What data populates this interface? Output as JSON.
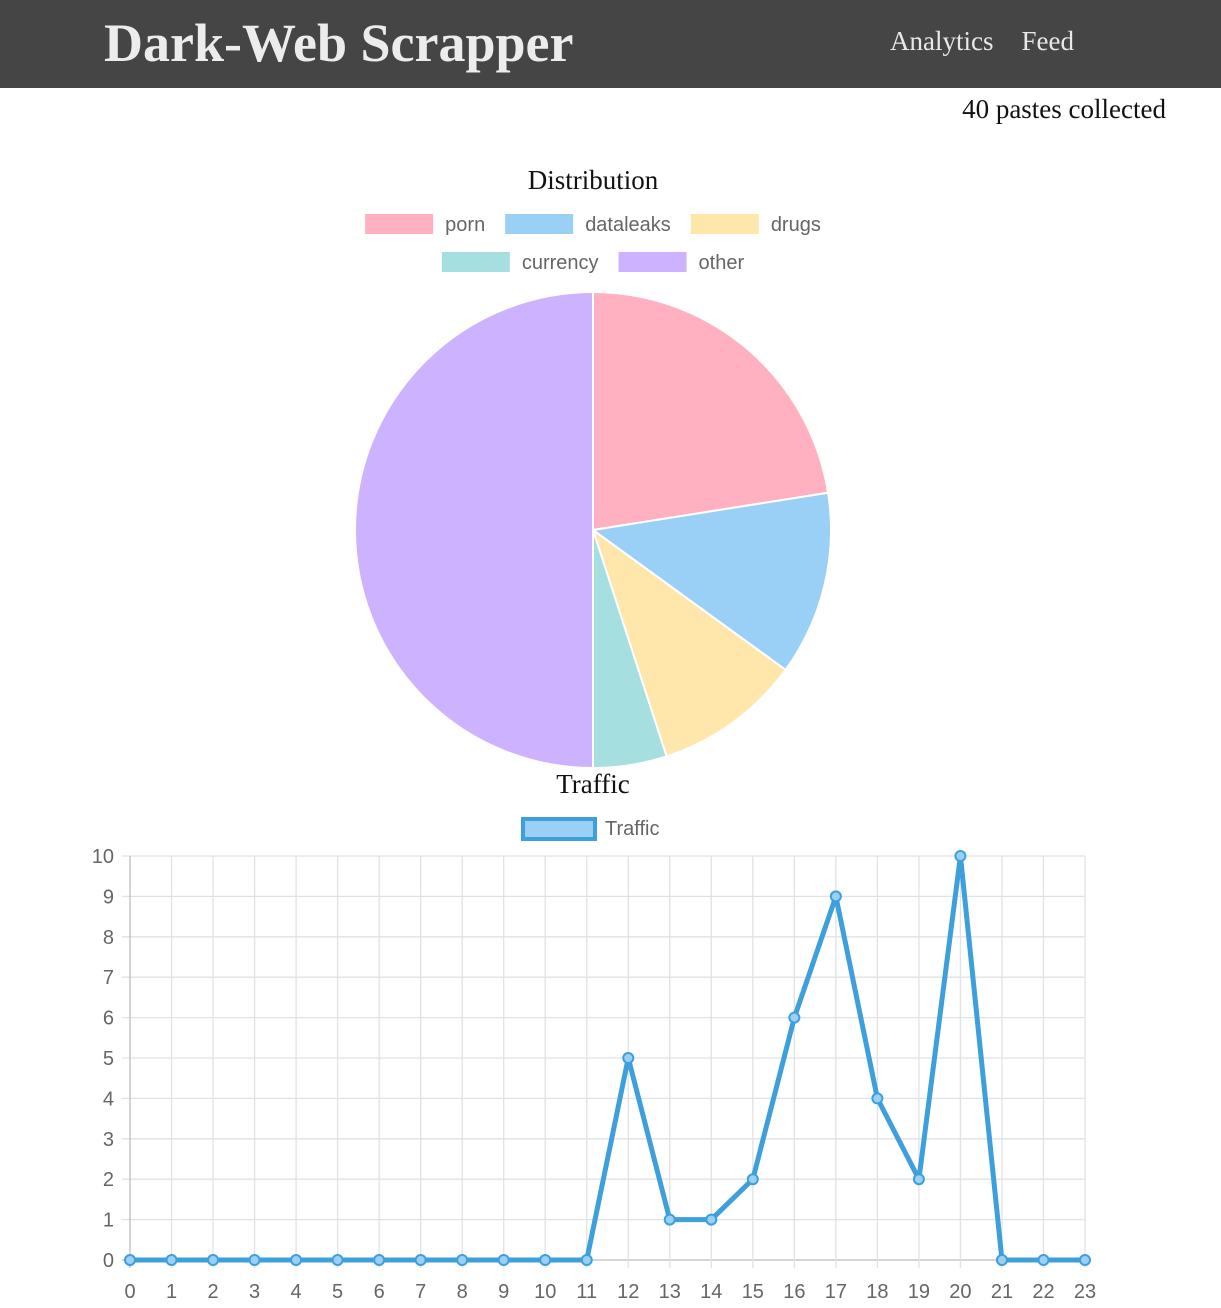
{
  "header": {
    "brand": "Dark-Web Scrapper",
    "nav": [
      {
        "label": "Analytics"
      },
      {
        "label": "Feed"
      }
    ]
  },
  "stats": {
    "paste_count": "40 pastes collected"
  },
  "chart_data": [
    {
      "type": "pie",
      "title": "Distribution",
      "categories": [
        "porn",
        "dataleaks",
        "drugs",
        "currency",
        "other"
      ],
      "values": [
        9,
        5,
        4,
        2,
        20
      ],
      "colors": [
        "#ffb1c1",
        "#9ad0f5",
        "#ffe6aa",
        "#a5dfdf",
        "#ccb2ff"
      ],
      "legend_position": "top"
    },
    {
      "type": "line",
      "title": "Traffic",
      "categories": [
        "0",
        "1",
        "2",
        "3",
        "4",
        "5",
        "6",
        "7",
        "8",
        "9",
        "10",
        "11",
        "12",
        "13",
        "14",
        "15",
        "16",
        "17",
        "18",
        "19",
        "20",
        "21",
        "22",
        "23"
      ],
      "series": [
        {
          "name": "Traffic",
          "values": [
            0,
            0,
            0,
            0,
            0,
            0,
            0,
            0,
            0,
            0,
            0,
            0,
            5,
            1,
            1,
            2,
            6,
            9,
            4,
            2,
            10,
            0,
            0,
            0
          ],
          "color": "#3d9fdb",
          "fill": "#9ad0f5"
        }
      ],
      "y_ticks": [
        "0",
        "1",
        "2",
        "3",
        "4",
        "5",
        "6",
        "7",
        "8",
        "9",
        "10"
      ],
      "ylim": [
        0,
        10
      ],
      "grid": true,
      "legend_position": "top"
    }
  ]
}
